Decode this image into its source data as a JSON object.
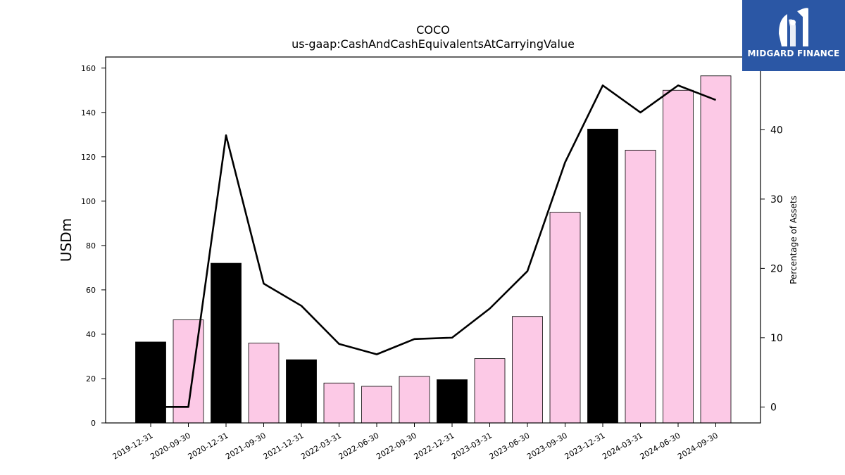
{
  "chart_data": {
    "type": "bar",
    "title": "COCO",
    "subtitle": "us-gaap:CashAndCashEquivalentsAtCarryingValue",
    "ylabel": "USDm",
    "y2label": "Percentage of Assets",
    "categories": [
      "2019-12-31",
      "2020-09-30",
      "2020-12-31",
      "2021-09-30",
      "2021-12-31",
      "2022-03-31",
      "2022-06-30",
      "2022-09-30",
      "2022-12-31",
      "2023-03-31",
      "2023-06-30",
      "2023-09-30",
      "2023-12-31",
      "2024-03-31",
      "2024-06-30",
      "2024-09-30"
    ],
    "values": [
      36.5,
      46.5,
      72,
      36,
      28.5,
      18,
      16.5,
      21,
      19.5,
      29,
      48,
      95,
      132.5,
      123,
      150,
      156.5
    ],
    "bar_colors": [
      "#000000",
      "#fcc9e6",
      "#000000",
      "#fcc9e6",
      "#000000",
      "#fcc9e6",
      "#fcc9e6",
      "#fcc9e6",
      "#000000",
      "#fcc9e6",
      "#fcc9e6",
      "#fcc9e6",
      "#000000",
      "#fcc9e6",
      "#fcc9e6",
      "#fcc9e6"
    ],
    "line_series": {
      "color": "#000000",
      "x_start_index": 0,
      "values": [
        0,
        0,
        39.2,
        17.8,
        14.6,
        9.1,
        7.6,
        9.8,
        10.0,
        14.2,
        19.6,
        35.3,
        46.4,
        42.5,
        46.4,
        44.3
      ]
    },
    "ylim": [
      0,
      165
    ],
    "y_ticks": [
      0,
      20,
      40,
      60,
      80,
      100,
      120,
      140,
      160
    ],
    "y2lim": [
      -2.3,
      50.5
    ],
    "y2_ticks": [
      0,
      10,
      20,
      30,
      40
    ],
    "grid": false,
    "legend": "none"
  },
  "logo": {
    "text": "MIDGARD FINANCE",
    "color": "#2b57a5"
  }
}
